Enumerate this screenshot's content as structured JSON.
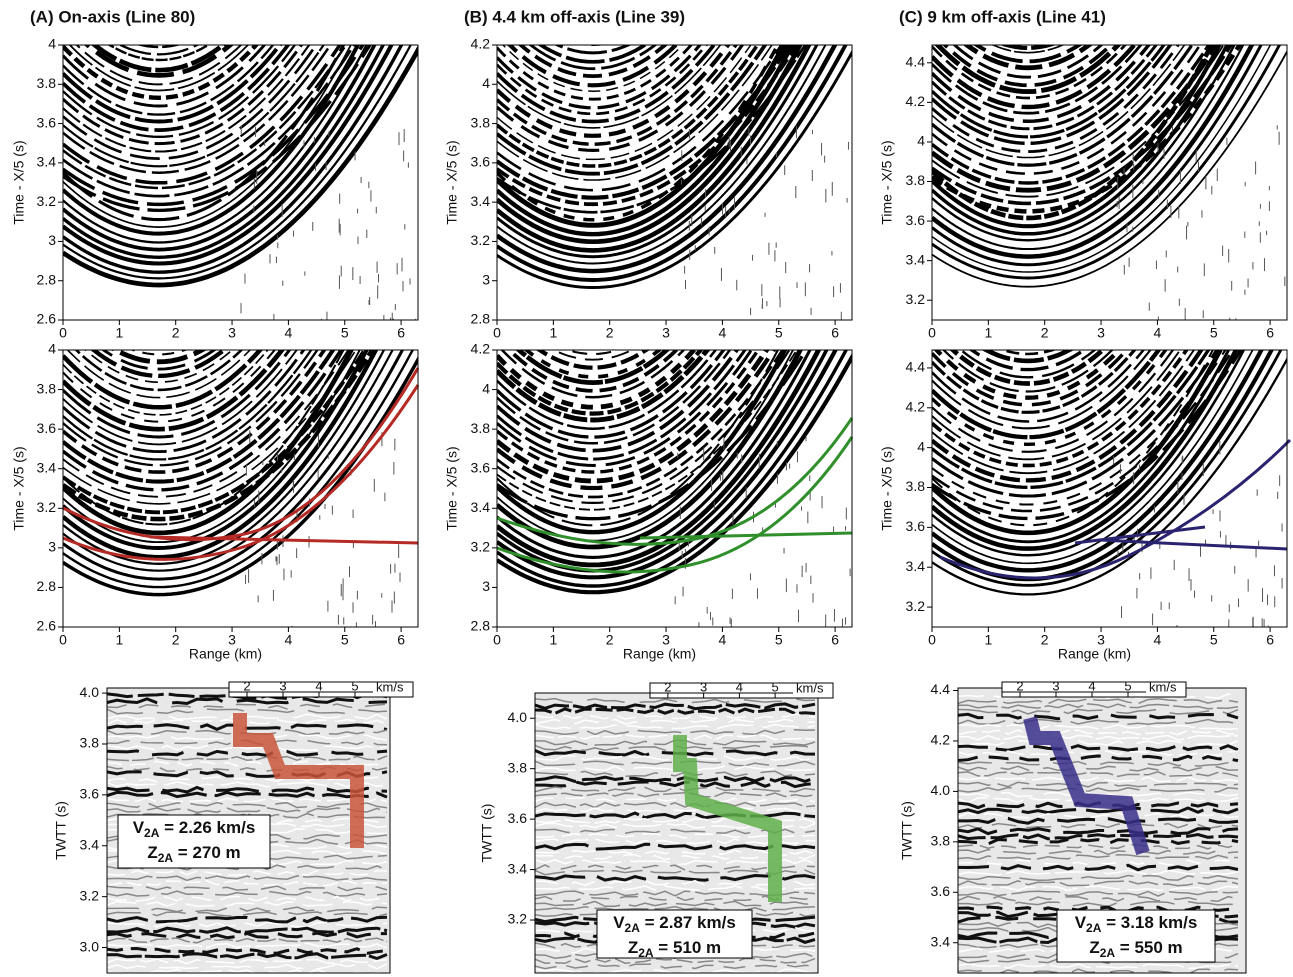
{
  "panels": [
    {
      "title": "(A)  On-axis (Line 80)",
      "gathers": {
        "ylabel": "Time - X/5 (s)",
        "xlabel": "Range (km)",
        "xlim": [
          0,
          6.3
        ],
        "ylim": [
          2.6,
          4
        ],
        "xticks": [
          0,
          1,
          2,
          3,
          4,
          5,
          6
        ],
        "yticks": [
          2.6,
          2.8,
          3,
          3.2,
          3.4,
          3.6,
          3.8,
          4
        ],
        "fit_color": "#b52a25"
      },
      "section": {
        "ylabel": "TWTT (s)",
        "ylim": [
          2.9,
          4.02
        ],
        "yticks": [
          {
            "value": 3,
            "label": "3.0"
          },
          3.2,
          3.4,
          3.6,
          3.8,
          {
            "value": 4,
            "label": "4.0"
          }
        ],
        "vlim": [
          1.5,
          5.5
        ],
        "vticks": [
          2,
          3,
          4,
          5
        ],
        "vunit": "km/s",
        "profile_color": "#c8553a",
        "velocity": {
          "symbol": "V",
          "subscript": "2A",
          "text": " = 2.26 km/s"
        },
        "thickness": {
          "symbol": "Z",
          "subscript": "2A",
          "text": " = 270 m"
        }
      }
    },
    {
      "title": "(B)  4.4 km off-axis (Line 39)",
      "gathers": {
        "ylabel": "Time - X/5 (s)",
        "xlabel": "Range (km)",
        "xlim": [
          0,
          6.3
        ],
        "ylim": [
          2.8,
          4.2
        ],
        "xticks": [
          0,
          1,
          2,
          3,
          4,
          5,
          6
        ],
        "yticks": [
          2.8,
          3,
          3.2,
          3.4,
          3.6,
          3.8,
          4,
          4.2
        ],
        "fit_color": "#2f8f2a"
      },
      "section": {
        "ylabel": "TWTT (s)",
        "ylim": [
          2.99,
          4.1
        ],
        "yticks": [
          3.2,
          3.4,
          3.6,
          3.8,
          {
            "value": 4,
            "label": "4.0"
          }
        ],
        "vlim": [
          1.5,
          5.5
        ],
        "vticks": [
          2,
          3,
          4,
          5
        ],
        "vunit": "km/s",
        "profile_color": "#5fb04a",
        "velocity": {
          "symbol": "V",
          "subscript": "2A",
          "text": " = 2.87 km/s"
        },
        "thickness": {
          "symbol": "Z",
          "subscript": "2A",
          "text": " = 510 m"
        }
      }
    },
    {
      "title": "(C)  9 km off-axis (Line 41)",
      "gathers": {
        "ylabel": "Time - X/5 (s)",
        "xlabel": "Range (km)",
        "xlim": [
          0,
          6.3
        ],
        "ylim": [
          3.1,
          4.49
        ],
        "xticks": [
          0,
          1,
          2,
          3,
          4,
          5,
          6
        ],
        "yticks": [
          3.2,
          3.4,
          3.6,
          3.8,
          4,
          4.2,
          4.4
        ],
        "fit_color": "#2a2470"
      },
      "section": {
        "ylabel": "TWTT (s)",
        "ylim": [
          3.28,
          4.41
        ],
        "yticks": [
          3.4,
          3.6,
          3.8,
          {
            "value": 4,
            "label": "4.0"
          },
          4.2,
          4.4
        ],
        "vlim": [
          1.5,
          5.5
        ],
        "vticks": [
          2,
          3,
          4,
          5
        ],
        "vunit": "km/s",
        "profile_color": "#3a2f8a",
        "velocity": {
          "symbol": "V",
          "subscript": "2A",
          "text": " = 3.18 km/s"
        },
        "thickness": {
          "symbol": "Z",
          "subscript": "2A",
          "text": " = 550 m"
        }
      }
    }
  ]
}
